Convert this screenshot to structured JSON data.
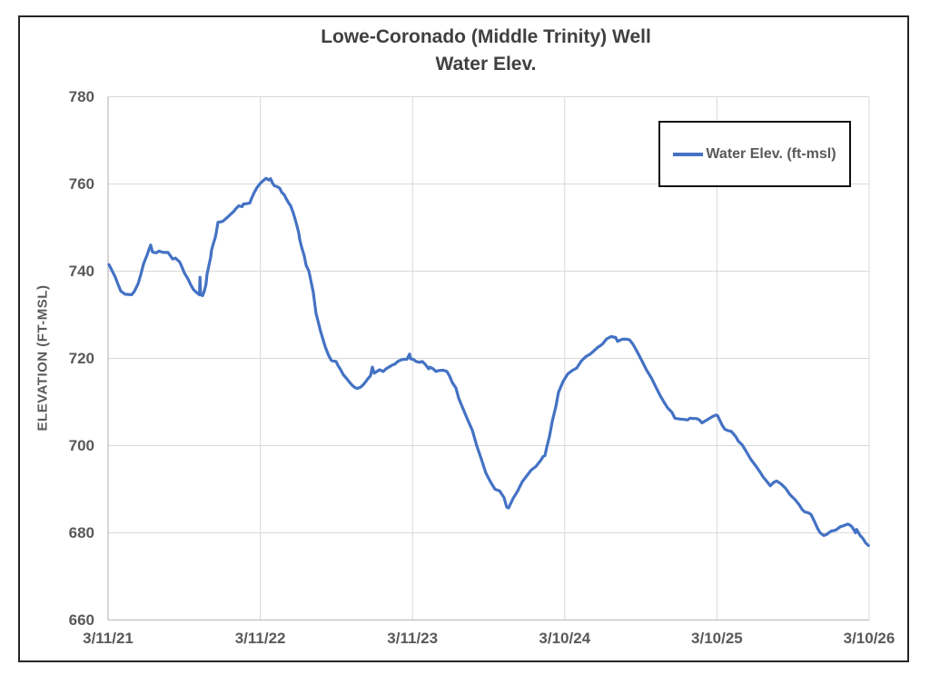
{
  "title": {
    "line1": "Lowe-Coronado (Middle Trinity) Well",
    "line2": "Water Elev."
  },
  "legend": {
    "label": "Water Elev. (ft-msl)"
  },
  "colors": {
    "series_blue": "#4472C4",
    "gridline": "#D9D9D9",
    "axis_line": "#BFBFBF",
    "tick_text": "#595959",
    "title_text": "#404040",
    "frame_border": "#262626"
  },
  "chart_data": {
    "type": "line",
    "title": "Lowe-Coronado (Middle Trinity) Well — Water Elev.",
    "xlabel": "",
    "ylabel": "ELEVATION (FT-MSL)",
    "ylim": [
      660,
      780
    ],
    "xlim": [
      0,
      5
    ],
    "grid": true,
    "legend_position": "inside-top-right",
    "yticks": [
      660,
      680,
      700,
      720,
      740,
      760,
      780
    ],
    "xticks": [
      {
        "t": 0,
        "label": "3/11/21"
      },
      {
        "t": 1,
        "label": "3/11/22"
      },
      {
        "t": 2,
        "label": "3/11/23"
      },
      {
        "t": 3,
        "label": "3/10/24"
      },
      {
        "t": 4,
        "label": "3/10/25"
      },
      {
        "t": 5,
        "label": "3/10/26"
      }
    ],
    "x_unit": "years since 3/11/21",
    "series": [
      {
        "name": "Water Elev. (ft-msl)",
        "color": "#4472C4",
        "points": [
          [
            0.006,
            741.5
          ],
          [
            0.024,
            740.3
          ],
          [
            0.048,
            738.6
          ],
          [
            0.066,
            736.9
          ],
          [
            0.084,
            735.4
          ],
          [
            0.113,
            734.7
          ],
          [
            0.155,
            734.6
          ],
          [
            0.173,
            735.4
          ],
          [
            0.197,
            737.1
          ],
          [
            0.215,
            739.2
          ],
          [
            0.233,
            741.7
          ],
          [
            0.257,
            743.8
          ],
          [
            0.274,
            745.5
          ],
          [
            0.28,
            746.0
          ],
          [
            0.292,
            744.4
          ],
          [
            0.316,
            744.2
          ],
          [
            0.334,
            744.6
          ],
          [
            0.364,
            744.3
          ],
          [
            0.394,
            744.3
          ],
          [
            0.412,
            743.4
          ],
          [
            0.424,
            742.8
          ],
          [
            0.442,
            743.0
          ],
          [
            0.471,
            742.1
          ],
          [
            0.483,
            741.1
          ],
          [
            0.501,
            739.6
          ],
          [
            0.525,
            738.2
          ],
          [
            0.543,
            736.9
          ],
          [
            0.561,
            735.8
          ],
          [
            0.585,
            735.0
          ],
          [
            0.6,
            734.6
          ],
          [
            0.604,
            738.6
          ],
          [
            0.608,
            734.6
          ],
          [
            0.621,
            734.4
          ],
          [
            0.632,
            735.4
          ],
          [
            0.644,
            737.1
          ],
          [
            0.65,
            739.2
          ],
          [
            0.662,
            741.3
          ],
          [
            0.674,
            743.2
          ],
          [
            0.68,
            744.9
          ],
          [
            0.692,
            746.4
          ],
          [
            0.704,
            747.7
          ],
          [
            0.71,
            748.7
          ],
          [
            0.722,
            751.2
          ],
          [
            0.752,
            751.4
          ],
          [
            0.782,
            752.3
          ],
          [
            0.8,
            752.9
          ],
          [
            0.823,
            753.6
          ],
          [
            0.841,
            754.4
          ],
          [
            0.859,
            755.0
          ],
          [
            0.88,
            754.8
          ],
          [
            0.889,
            755.4
          ],
          [
            0.913,
            755.5
          ],
          [
            0.931,
            755.6
          ],
          [
            0.943,
            756.7
          ],
          [
            0.961,
            758.1
          ],
          [
            0.979,
            759.2
          ],
          [
            1.002,
            760.2
          ],
          [
            1.02,
            760.8
          ],
          [
            1.038,
            761.3
          ],
          [
            1.056,
            760.9
          ],
          [
            1.068,
            761.2
          ],
          [
            1.08,
            760.2
          ],
          [
            1.092,
            759.6
          ],
          [
            1.11,
            759.4
          ],
          [
            1.128,
            759.0
          ],
          [
            1.14,
            758.1
          ],
          [
            1.158,
            757.5
          ],
          [
            1.169,
            756.7
          ],
          [
            1.187,
            755.6
          ],
          [
            1.199,
            755.0
          ],
          [
            1.217,
            753.3
          ],
          [
            1.229,
            751.9
          ],
          [
            1.241,
            750.4
          ],
          [
            1.253,
            748.7
          ],
          [
            1.259,
            747.3
          ],
          [
            1.271,
            745.6
          ],
          [
            1.289,
            743.5
          ],
          [
            1.301,
            741.4
          ],
          [
            1.319,
            740.0
          ],
          [
            1.348,
            735.2
          ],
          [
            1.366,
            730.4
          ],
          [
            1.396,
            726.2
          ],
          [
            1.426,
            722.7
          ],
          [
            1.45,
            720.6
          ],
          [
            1.468,
            719.5
          ],
          [
            1.498,
            719.3
          ],
          [
            1.51,
            718.4
          ],
          [
            1.528,
            717.4
          ],
          [
            1.545,
            716.3
          ],
          [
            1.569,
            715.3
          ],
          [
            1.587,
            714.5
          ],
          [
            1.605,
            713.8
          ],
          [
            1.623,
            713.3
          ],
          [
            1.635,
            713.1
          ],
          [
            1.659,
            713.4
          ],
          [
            1.677,
            714.0
          ],
          [
            1.689,
            714.5
          ],
          [
            1.706,
            715.3
          ],
          [
            1.724,
            716.0
          ],
          [
            1.736,
            718.0
          ],
          [
            1.748,
            716.6
          ],
          [
            1.766,
            717.0
          ],
          [
            1.784,
            717.4
          ],
          [
            1.808,
            717.0
          ],
          [
            1.826,
            717.6
          ],
          [
            1.844,
            718.0
          ],
          [
            1.868,
            718.5
          ],
          [
            1.885,
            718.7
          ],
          [
            1.903,
            719.3
          ],
          [
            1.927,
            719.7
          ],
          [
            1.945,
            719.8
          ],
          [
            1.963,
            719.8
          ],
          [
            1.981,
            721.0
          ],
          [
            1.987,
            719.9
          ],
          [
            2.005,
            719.8
          ],
          [
            2.023,
            719.3
          ],
          [
            2.047,
            719.1
          ],
          [
            2.064,
            719.3
          ],
          [
            2.082,
            718.7
          ],
          [
            2.106,
            717.6
          ],
          [
            2.112,
            718.0
          ],
          [
            2.136,
            717.6
          ],
          [
            2.154,
            717.0
          ],
          [
            2.172,
            717.2
          ],
          [
            2.202,
            717.3
          ],
          [
            2.226,
            717.0
          ],
          [
            2.243,
            716.0
          ],
          [
            2.261,
            714.5
          ],
          [
            2.285,
            713.2
          ],
          [
            2.303,
            710.9
          ],
          [
            2.333,
            708.4
          ],
          [
            2.363,
            705.9
          ],
          [
            2.393,
            703.5
          ],
          [
            2.422,
            700.0
          ],
          [
            2.452,
            696.9
          ],
          [
            2.482,
            693.7
          ],
          [
            2.512,
            691.7
          ],
          [
            2.542,
            690.0
          ],
          [
            2.572,
            689.6
          ],
          [
            2.601,
            688.1
          ],
          [
            2.619,
            685.9
          ],
          [
            2.631,
            685.7
          ],
          [
            2.661,
            687.9
          ],
          [
            2.691,
            689.6
          ],
          [
            2.721,
            691.7
          ],
          [
            2.751,
            693.1
          ],
          [
            2.78,
            694.4
          ],
          [
            2.81,
            695.2
          ],
          [
            2.84,
            696.5
          ],
          [
            2.858,
            697.5
          ],
          [
            2.87,
            697.7
          ],
          [
            2.882,
            699.6
          ],
          [
            2.9,
            702.1
          ],
          [
            2.918,
            705.6
          ],
          [
            2.942,
            709.0
          ],
          [
            2.959,
            712.2
          ],
          [
            2.989,
            714.7
          ],
          [
            3.019,
            716.4
          ],
          [
            3.049,
            717.2
          ],
          [
            3.079,
            717.8
          ],
          [
            3.109,
            719.4
          ],
          [
            3.138,
            720.4
          ],
          [
            3.168,
            721.0
          ],
          [
            3.216,
            722.5
          ],
          [
            3.246,
            723.2
          ],
          [
            3.276,
            724.5
          ],
          [
            3.305,
            725.0
          ],
          [
            3.335,
            724.8
          ],
          [
            3.347,
            723.9
          ],
          [
            3.377,
            724.4
          ],
          [
            3.407,
            724.4
          ],
          [
            3.425,
            724.3
          ],
          [
            3.449,
            723.2
          ],
          [
            3.478,
            721.4
          ],
          [
            3.508,
            719.4
          ],
          [
            3.538,
            717.3
          ],
          [
            3.568,
            715.6
          ],
          [
            3.598,
            713.5
          ],
          [
            3.628,
            711.4
          ],
          [
            3.657,
            709.7
          ],
          [
            3.675,
            708.7
          ],
          [
            3.705,
            707.6
          ],
          [
            3.723,
            706.3
          ],
          [
            3.753,
            706.1
          ],
          [
            3.783,
            706.0
          ],
          [
            3.807,
            705.9
          ],
          [
            3.824,
            706.3
          ],
          [
            3.848,
            706.2
          ],
          [
            3.866,
            706.2
          ],
          [
            3.884,
            705.9
          ],
          [
            3.902,
            705.2
          ],
          [
            3.92,
            705.6
          ],
          [
            3.944,
            706.1
          ],
          [
            3.974,
            706.7
          ],
          [
            3.992,
            707.0
          ],
          [
            4.004,
            706.9
          ],
          [
            4.033,
            704.8
          ],
          [
            4.051,
            703.8
          ],
          [
            4.075,
            703.4
          ],
          [
            4.093,
            703.3
          ],
          [
            4.123,
            702.1
          ],
          [
            4.141,
            701.0
          ],
          [
            4.165,
            700.2
          ],
          [
            4.195,
            698.5
          ],
          [
            4.224,
            696.8
          ],
          [
            4.254,
            695.4
          ],
          [
            4.284,
            693.9
          ],
          [
            4.302,
            692.9
          ],
          [
            4.332,
            691.6
          ],
          [
            4.35,
            690.8
          ],
          [
            4.374,
            691.6
          ],
          [
            4.392,
            691.9
          ],
          [
            4.421,
            691.2
          ],
          [
            4.451,
            690.2
          ],
          [
            4.481,
            688.7
          ],
          [
            4.511,
            687.7
          ],
          [
            4.541,
            686.4
          ],
          [
            4.559,
            685.4
          ],
          [
            4.577,
            684.8
          ],
          [
            4.6,
            684.6
          ],
          [
            4.618,
            684.2
          ],
          [
            4.642,
            682.5
          ],
          [
            4.66,
            681.1
          ],
          [
            4.678,
            680.0
          ],
          [
            4.702,
            679.4
          ],
          [
            4.72,
            679.6
          ],
          [
            4.75,
            680.4
          ],
          [
            4.78,
            680.6
          ],
          [
            4.81,
            681.4
          ],
          [
            4.839,
            681.7
          ],
          [
            4.857,
            682.0
          ],
          [
            4.869,
            681.9
          ],
          [
            4.887,
            681.4
          ],
          [
            4.911,
            680.0
          ],
          [
            4.917,
            680.8
          ],
          [
            4.941,
            679.4
          ],
          [
            4.959,
            678.7
          ],
          [
            4.977,
            677.7
          ],
          [
            4.995,
            677.1
          ]
        ]
      }
    ]
  }
}
